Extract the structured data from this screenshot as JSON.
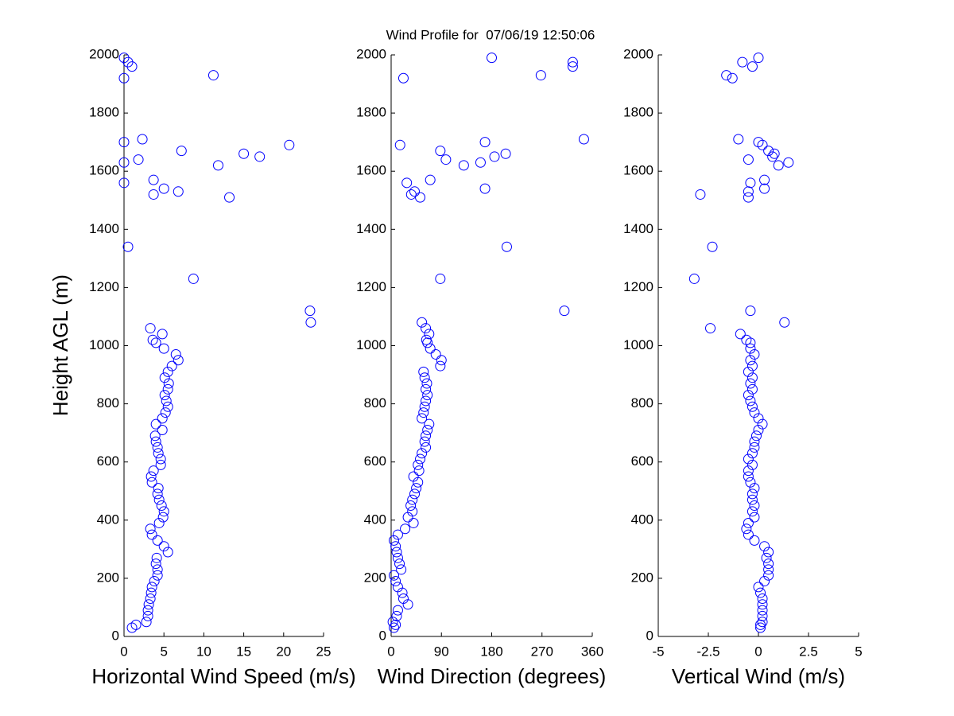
{
  "title": "Wind Profile for  07/06/19 12:50:06",
  "chart_data": [
    {
      "type": "scatter",
      "xlabel": "Horizontal Wind Speed (m/s)",
      "ylabel": "Height AGL (m)",
      "color": "#0000ff",
      "xlim": [
        0,
        25
      ],
      "xticks": [
        0,
        5,
        10,
        15,
        20,
        25
      ],
      "ylim": [
        0,
        2000
      ],
      "yticks": [
        0,
        200,
        400,
        600,
        800,
        1000,
        1200,
        1400,
        1600,
        1800,
        2000
      ],
      "x": [
        1.0,
        1.5,
        2.8,
        3.0,
        3.0,
        3.1,
        3.3,
        3.4,
        3.5,
        3.8,
        4.2,
        4.2,
        4.0,
        4.1,
        5.5,
        5.0,
        4.2,
        3.5,
        3.3,
        4.4,
        4.9,
        5.0,
        4.7,
        4.4,
        4.2,
        4.3,
        3.5,
        3.4,
        3.7,
        4.6,
        4.6,
        4.3,
        4.2,
        4.0,
        3.9,
        4.8,
        4.0,
        4.8,
        5.2,
        5.5,
        5.3,
        5.1,
        5.5,
        5.6,
        5.1,
        5.5,
        6.0,
        6.8,
        6.5,
        5.0,
        4.0,
        3.6,
        4.8,
        3.3,
        23.4,
        23.3,
        8.7,
        0.5,
        13.2,
        3.7,
        6.8,
        5.0,
        0,
        3.7,
        11.8,
        0,
        1.8,
        17.0,
        15.0,
        7.2,
        20.7,
        0,
        2.3,
        0,
        11.2,
        1.0,
        0.5,
        0
      ],
      "values": [
        30,
        40,
        50,
        70,
        90,
        110,
        130,
        150,
        170,
        190,
        210,
        230,
        250,
        270,
        290,
        310,
        330,
        350,
        370,
        390,
        410,
        430,
        450,
        470,
        490,
        510,
        530,
        550,
        570,
        590,
        610,
        630,
        650,
        670,
        690,
        710,
        730,
        750,
        770,
        790,
        810,
        830,
        850,
        870,
        890,
        910,
        930,
        950,
        970,
        990,
        1010,
        1020,
        1040,
        1060,
        1080,
        1120,
        1230,
        1340,
        1510,
        1520,
        1530,
        1540,
        1560,
        1570,
        1620,
        1630,
        1640,
        1650,
        1660,
        1670,
        1690,
        1700,
        1710,
        1920,
        1930,
        1960,
        1975,
        1990
      ]
    },
    {
      "type": "scatter",
      "xlabel": "Wind Direction (degrees)",
      "color": "#0000ff",
      "xlim": [
        0,
        360
      ],
      "xticks": [
        0,
        90,
        180,
        270,
        360
      ],
      "ylim": [
        0,
        2000
      ],
      "yticks": [
        0,
        200,
        400,
        600,
        800,
        1000,
        1200,
        1400,
        1600,
        1800,
        2000
      ],
      "x": [
        5,
        8,
        3,
        10,
        12,
        30,
        22,
        20,
        12,
        8,
        5,
        18,
        15,
        12,
        10,
        8,
        5,
        12,
        25,
        40,
        30,
        38,
        35,
        38,
        42,
        45,
        48,
        40,
        50,
        48,
        52,
        55,
        62,
        60,
        62,
        65,
        68,
        55,
        58,
        60,
        62,
        65,
        62,
        64,
        60,
        58,
        88,
        90,
        80,
        70,
        65,
        63,
        68,
        62,
        55,
        310,
        88,
        207,
        52,
        36,
        42,
        168,
        28,
        70,
        130,
        160,
        98,
        185,
        205,
        88,
        16,
        168,
        345,
        22,
        268,
        325,
        325,
        180
      ],
      "values": [
        30,
        40,
        50,
        70,
        90,
        110,
        130,
        150,
        170,
        190,
        210,
        230,
        250,
        270,
        290,
        310,
        330,
        350,
        370,
        390,
        410,
        430,
        450,
        470,
        490,
        510,
        530,
        550,
        570,
        590,
        610,
        630,
        650,
        670,
        690,
        710,
        730,
        750,
        770,
        790,
        810,
        830,
        850,
        870,
        890,
        910,
        930,
        950,
        970,
        990,
        1010,
        1020,
        1040,
        1060,
        1080,
        1120,
        1230,
        1340,
        1510,
        1520,
        1530,
        1540,
        1560,
        1570,
        1620,
        1630,
        1640,
        1650,
        1660,
        1670,
        1690,
        1700,
        1710,
        1920,
        1930,
        1960,
        1975,
        1990
      ]
    },
    {
      "type": "scatter",
      "xlabel": "Vertical Wind (m/s)",
      "color": "#0000ff",
      "xlim": [
        -5,
        5
      ],
      "xticks": [
        -5,
        -2.5,
        0,
        2.5,
        5
      ],
      "ylim": [
        0,
        2000
      ],
      "yticks": [
        0,
        200,
        400,
        600,
        800,
        1000,
        1200,
        1400,
        1600,
        1800,
        2000
      ],
      "x": [
        0.1,
        0.1,
        0.2,
        0.2,
        0.2,
        0.2,
        0.2,
        0.1,
        0,
        0.3,
        0.5,
        0.5,
        0.5,
        0.4,
        0.5,
        0.3,
        -0.2,
        -0.5,
        -0.6,
        -0.5,
        -0.2,
        -0.3,
        -0.2,
        -0.3,
        -0.3,
        -0.2,
        -0.4,
        -0.5,
        -0.5,
        -0.3,
        -0.5,
        -0.3,
        -0.2,
        -0.2,
        -0.1,
        0,
        0.2,
        0,
        -0.2,
        -0.3,
        -0.4,
        -0.5,
        -0.3,
        -0.4,
        -0.3,
        -0.5,
        -0.3,
        -0.4,
        -0.2,
        -0.4,
        -0.4,
        -0.6,
        -0.9,
        -2.4,
        1.3,
        -0.4,
        -3.2,
        -2.3,
        -0.5,
        -2.9,
        -0.5,
        0.3,
        -0.4,
        0.3,
        1.0,
        1.5,
        -0.5,
        0.7,
        0.8,
        0.5,
        0.2,
        0,
        -1.0,
        -1.3,
        -1.6,
        -0.3,
        -0.8,
        0
      ],
      "values": [
        30,
        40,
        50,
        70,
        90,
        110,
        130,
        150,
        170,
        190,
        210,
        230,
        250,
        270,
        290,
        310,
        330,
        350,
        370,
        390,
        410,
        430,
        450,
        470,
        490,
        510,
        530,
        550,
        570,
        590,
        610,
        630,
        650,
        670,
        690,
        710,
        730,
        750,
        770,
        790,
        810,
        830,
        850,
        870,
        890,
        910,
        930,
        950,
        970,
        990,
        1010,
        1020,
        1040,
        1060,
        1080,
        1120,
        1230,
        1340,
        1510,
        1520,
        1530,
        1540,
        1560,
        1570,
        1620,
        1630,
        1640,
        1650,
        1660,
        1670,
        1690,
        1700,
        1710,
        1920,
        1930,
        1960,
        1975,
        1990
      ]
    }
  ]
}
